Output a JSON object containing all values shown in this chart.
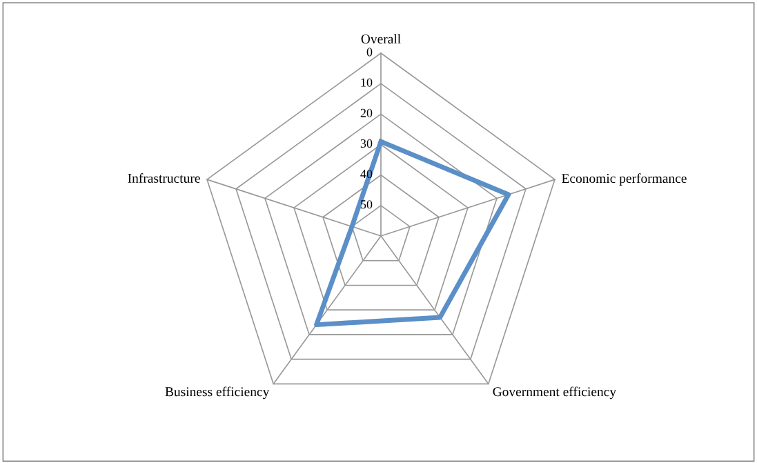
{
  "chart_data": {
    "type": "radar",
    "categories": [
      "Overall",
      "Economic performance",
      "Government efficiency",
      "Business efficiency",
      "Infrastructure"
    ],
    "series": [
      {
        "color": "#5b8fc7",
        "values": [
          29,
          16,
          27,
          24,
          50
        ]
      }
    ],
    "ylim": [
      60,
      0
    ],
    "yticks": [
      0,
      10,
      20,
      30,
      40,
      50
    ],
    "grid": true,
    "marker": "none",
    "line_style": "solid"
  }
}
